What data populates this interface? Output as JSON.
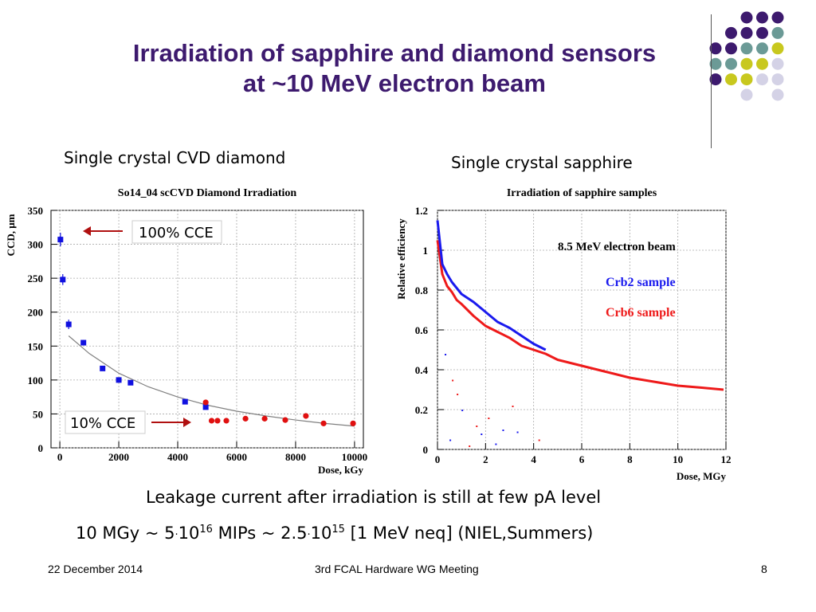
{
  "slide": {
    "title_line1": "Irradiation of sapphire and diamond sensors",
    "title_line2": "at ~10 MeV electron beam",
    "left_caption": "Single crystal CVD diamond",
    "right_caption": "Single crystal sapphire",
    "leakage_text": "Leakage current after irradiation is still at few pA level",
    "equiv": {
      "a": "10 MGy  ~  5",
      "a_exp": "16",
      "b": " MIPs  ~  2.5",
      "b_exp": "15",
      "c": " [1 MeV neq]   (NIEL,Summers)",
      "ten": "10",
      "dot": "·"
    },
    "footer_left": "22 December 2014",
    "footer_center": "3rd FCAL Hardware WG Meeting",
    "footer_right": "8",
    "colors": {
      "title": "#3d1a6e",
      "purple": "#3d1a6e",
      "teal": "#6b9a96",
      "olive": "#c8c81e",
      "lavender": "#d4d2e6"
    }
  },
  "chart_data": [
    {
      "type": "scatter",
      "title": "So14_04 scCVD Diamond Irradiation",
      "xlabel": "Dose, kGy",
      "ylabel": "CCD, μm",
      "xlim": [
        -300,
        10300
      ],
      "ylim": [
        0,
        350
      ],
      "xticks": [
        "0",
        "2000",
        "4000",
        "6000",
        "8000",
        "10000"
      ],
      "yticks": [
        "0",
        "50",
        "100",
        "150",
        "200",
        "250",
        "300",
        "350"
      ],
      "grid": true,
      "series": [
        {
          "name": "blue points",
          "color": "#1010e0",
          "marker": "square",
          "x": [
            20,
            100,
            300,
            800,
            1450,
            2000,
            2400,
            4250,
            4950
          ],
          "y": [
            307,
            248,
            182,
            155,
            117,
            100,
            96,
            68,
            60
          ],
          "err": [
            10,
            8,
            7,
            4,
            3,
            3,
            3,
            3,
            3
          ]
        },
        {
          "name": "red points",
          "color": "#e01010",
          "marker": "circle",
          "x": [
            4950,
            5150,
            5350,
            5650,
            6300,
            6950,
            7650,
            8350,
            8950,
            9950
          ],
          "y": [
            67,
            40,
            40,
            40,
            43,
            43,
            41,
            47,
            36,
            36
          ]
        },
        {
          "name": "fit",
          "color": "#808080",
          "type": "line",
          "x": [
            300,
            1000,
            2000,
            3000,
            4000,
            5000,
            6000,
            7000,
            8000,
            9000,
            10000
          ],
          "y": [
            165,
            139,
            110,
            90,
            75,
            63,
            54,
            47,
            41,
            36,
            32
          ]
        }
      ],
      "annotations": [
        {
          "text": "100% CCE"
        },
        {
          "text": "10% CCE"
        }
      ]
    },
    {
      "type": "line",
      "title": "Irradiation of sapphire samples",
      "xlabel": "Dose, MGy",
      "ylabel": "Relative efficiency",
      "xlim": [
        0,
        12
      ],
      "ylim": [
        0,
        1.2
      ],
      "xticks": [
        "0",
        "2",
        "4",
        "6",
        "8",
        "10",
        "12"
      ],
      "yticks": [
        "0",
        "0.2",
        "0.4",
        "0.6",
        "0.8",
        "1",
        "1.2"
      ],
      "annotation": "8.5 MeV electron beam",
      "series": [
        {
          "name": "Crb2 sample",
          "color": "#1a1aee",
          "x": [
            0.0,
            0.2,
            0.4,
            0.6,
            0.8,
            1.0,
            1.5,
            2.0,
            2.5,
            3.0,
            3.5,
            4.0,
            4.5
          ],
          "y": [
            1.15,
            0.93,
            0.88,
            0.84,
            0.81,
            0.78,
            0.74,
            0.69,
            0.64,
            0.61,
            0.57,
            0.53,
            0.5
          ]
        },
        {
          "name": "Crb6 sample",
          "color": "#ee1a1a",
          "x": [
            0.0,
            0.2,
            0.4,
            0.6,
            0.8,
            1.0,
            1.5,
            2.0,
            2.5,
            3.0,
            3.5,
            4.0,
            4.5,
            5.0,
            6.0,
            7.0,
            8.0,
            9.0,
            10.0,
            11.0,
            11.9
          ],
          "y": [
            1.05,
            0.88,
            0.82,
            0.79,
            0.75,
            0.73,
            0.67,
            0.62,
            0.59,
            0.56,
            0.52,
            0.5,
            0.48,
            0.45,
            0.42,
            0.39,
            0.36,
            0.34,
            0.32,
            0.31,
            0.3
          ]
        }
      ]
    }
  ]
}
